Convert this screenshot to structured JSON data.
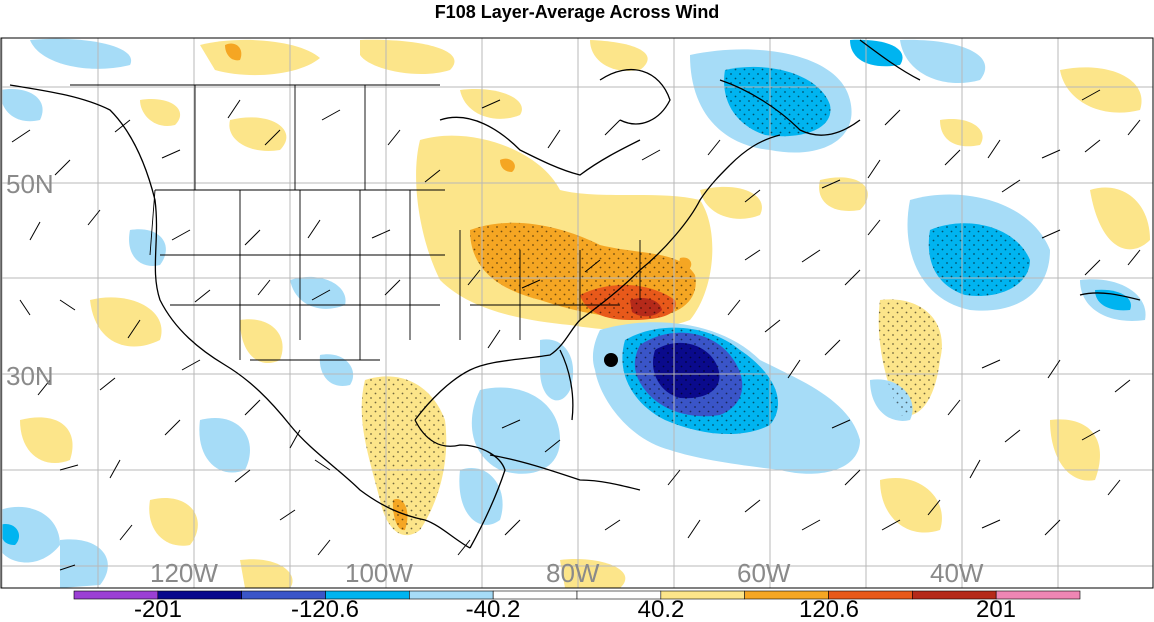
{
  "title": "F108 Layer-Average Across Wind",
  "lat_labels": [
    "50N",
    "30N"
  ],
  "lon_labels": [
    "120W",
    "100W",
    "80W",
    "60W",
    "40W"
  ],
  "colorbar": {
    "labels": [
      "-201",
      "-120.6",
      "-40.2",
      "40.2",
      "120.6",
      "201"
    ],
    "colors": [
      "#9b3fd4",
      "#0a0a8c",
      "#3a55c8",
      "#00b4f0",
      "#a6dcf7",
      "#ffffff",
      "#ffffff",
      "#fce58a",
      "#f5a623",
      "#e8591a",
      "#b52a1a",
      "#ef86b4"
    ]
  },
  "marker": "storm-center-dot"
}
